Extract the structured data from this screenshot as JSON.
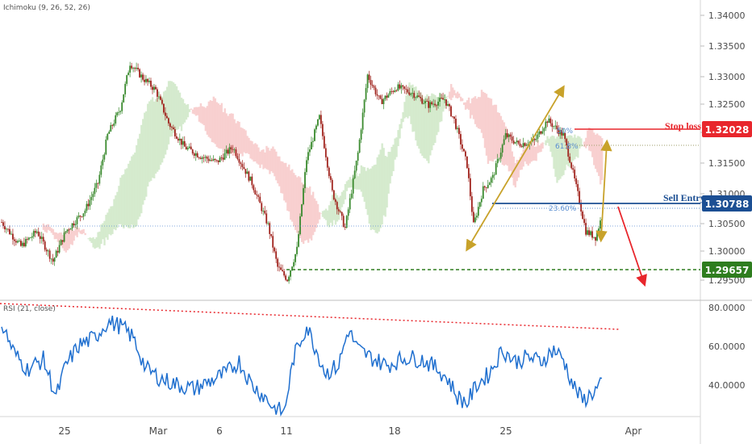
{
  "indicators": {
    "ichimoku_label": "Ichimoku (9, 26, 52, 26)",
    "rsi_label": "RSI (21, close)"
  },
  "price_axis": {
    "ticks": [
      "1.34000",
      "1.33500",
      "1.33000",
      "1.32500",
      "1.32000",
      "1.31500",
      "1.31000",
      "1.30500",
      "1.30000",
      "1.29500"
    ],
    "ylim": [
      1.2935,
      1.3435
    ]
  },
  "rsi_axis": {
    "ticks": [
      "80.0000",
      "60.0000",
      "40.0000"
    ],
    "ylim": [
      26,
      85
    ]
  },
  "time_axis": {
    "labels": [
      "25",
      "Mar",
      "6",
      "11",
      "18",
      "25",
      "Apr"
    ]
  },
  "levels": {
    "stop_loss": {
      "label": "Stop loss",
      "price": "1.32028",
      "color": "#e8262c"
    },
    "sell_entry": {
      "label": "Sell Entry",
      "price": "1.30788",
      "color": "#1c4f93"
    },
    "target": {
      "price": "1.29657",
      "color": "#2e7d1e"
    }
  },
  "fib": {
    "label_1": "23.60%",
    "label_2": "61.8%",
    "label_3": "50%"
  },
  "colors": {
    "candle_up": "#3a8a2e",
    "candle_down": "#a0231d",
    "cloud_bull": "#cfe8c7",
    "cloud_bear": "#f7c9c9",
    "rsi_line": "#1f6fcf",
    "trend_dotted": "#e8262c",
    "arrows_gold": "#c8a22a",
    "arrow_red": "#e8262c"
  },
  "chart_data": {
    "type": "candlestick",
    "series": [
      {
        "name": "Ichimoku (9, 26, 52, 26)",
        "anchors": [
          {
            "t": 0,
            "p": 1.3065
          },
          {
            "t": 12,
            "p": 1.3025
          },
          {
            "t": 22,
            "p": 1.305
          },
          {
            "t": 32,
            "p": 1.3
          },
          {
            "t": 40,
            "p": 1.305
          },
          {
            "t": 52,
            "p": 1.3085
          },
          {
            "t": 60,
            "p": 1.313
          },
          {
            "t": 66,
            "p": 1.321
          },
          {
            "t": 74,
            "p": 1.3255
          },
          {
            "t": 80,
            "p": 1.333
          },
          {
            "t": 88,
            "p": 1.3305
          },
          {
            "t": 96,
            "p": 1.3285
          },
          {
            "t": 104,
            "p": 1.323
          },
          {
            "t": 114,
            "p": 1.319
          },
          {
            "t": 124,
            "p": 1.3175
          },
          {
            "t": 134,
            "p": 1.3165
          },
          {
            "t": 144,
            "p": 1.319
          },
          {
            "t": 156,
            "p": 1.313
          },
          {
            "t": 166,
            "p": 1.306
          },
          {
            "t": 172,
            "p": 1.299
          },
          {
            "t": 178,
            "p": 1.297
          },
          {
            "t": 184,
            "p": 1.302
          },
          {
            "t": 190,
            "p": 1.317
          },
          {
            "t": 198,
            "p": 1.324
          },
          {
            "t": 206,
            "p": 1.3115
          },
          {
            "t": 214,
            "p": 1.3055
          },
          {
            "t": 222,
            "p": 1.318
          },
          {
            "t": 228,
            "p": 1.331
          },
          {
            "t": 236,
            "p": 1.3265
          },
          {
            "t": 246,
            "p": 1.329
          },
          {
            "t": 256,
            "p": 1.328
          },
          {
            "t": 266,
            "p": 1.326
          },
          {
            "t": 276,
            "p": 1.327
          },
          {
            "t": 282,
            "p": 1.3235
          },
          {
            "t": 290,
            "p": 1.316
          },
          {
            "t": 294,
            "p": 1.306
          },
          {
            "t": 300,
            "p": 1.312
          },
          {
            "t": 306,
            "p": 1.314
          },
          {
            "t": 314,
            "p": 1.321
          },
          {
            "t": 322,
            "p": 1.3195
          },
          {
            "t": 332,
            "p": 1.32
          },
          {
            "t": 340,
            "p": 1.3235
          },
          {
            "t": 350,
            "p": 1.321
          },
          {
            "t": 354,
            "p": 1.317
          },
          {
            "t": 360,
            "p": 1.31
          },
          {
            "t": 364,
            "p": 1.305
          },
          {
            "t": 370,
            "p": 1.304
          },
          {
            "t": 374,
            "p": 1.3075
          }
        ]
      },
      {
        "name": "RSI (21, close)",
        "anchors": [
          {
            "t": 0,
            "v": 73
          },
          {
            "t": 8,
            "v": 58
          },
          {
            "t": 16,
            "v": 50
          },
          {
            "t": 26,
            "v": 55
          },
          {
            "t": 34,
            "v": 36
          },
          {
            "t": 40,
            "v": 52
          },
          {
            "t": 48,
            "v": 62
          },
          {
            "t": 58,
            "v": 66
          },
          {
            "t": 66,
            "v": 74
          },
          {
            "t": 74,
            "v": 72
          },
          {
            "t": 82,
            "v": 66
          },
          {
            "t": 90,
            "v": 50
          },
          {
            "t": 100,
            "v": 45
          },
          {
            "t": 110,
            "v": 42
          },
          {
            "t": 120,
            "v": 40
          },
          {
            "t": 130,
            "v": 44
          },
          {
            "t": 140,
            "v": 48
          },
          {
            "t": 148,
            "v": 54
          },
          {
            "t": 156,
            "v": 42
          },
          {
            "t": 164,
            "v": 36
          },
          {
            "t": 170,
            "v": 30
          },
          {
            "t": 176,
            "v": 28
          },
          {
            "t": 182,
            "v": 56
          },
          {
            "t": 190,
            "v": 72
          },
          {
            "t": 196,
            "v": 60
          },
          {
            "t": 202,
            "v": 48
          },
          {
            "t": 210,
            "v": 52
          },
          {
            "t": 216,
            "v": 70
          },
          {
            "t": 222,
            "v": 60
          },
          {
            "t": 230,
            "v": 56
          },
          {
            "t": 240,
            "v": 52
          },
          {
            "t": 252,
            "v": 56
          },
          {
            "t": 262,
            "v": 55
          },
          {
            "t": 272,
            "v": 50
          },
          {
            "t": 278,
            "v": 45
          },
          {
            "t": 284,
            "v": 36
          },
          {
            "t": 290,
            "v": 33
          },
          {
            "t": 296,
            "v": 42
          },
          {
            "t": 304,
            "v": 48
          },
          {
            "t": 312,
            "v": 60
          },
          {
            "t": 320,
            "v": 54
          },
          {
            "t": 328,
            "v": 56
          },
          {
            "t": 336,
            "v": 54
          },
          {
            "t": 344,
            "v": 60
          },
          {
            "t": 350,
            "v": 55
          },
          {
            "t": 356,
            "v": 42
          },
          {
            "t": 362,
            "v": 34
          },
          {
            "t": 368,
            "v": 38
          },
          {
            "t": 374,
            "v": 42
          }
        ]
      }
    ],
    "ylabel": "",
    "grid": false
  }
}
